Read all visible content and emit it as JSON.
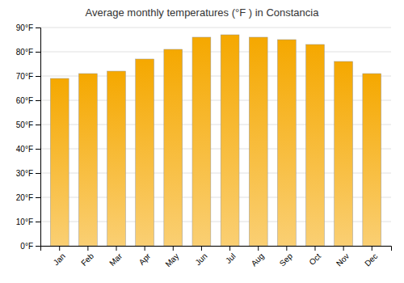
{
  "chart_data": {
    "type": "bar",
    "title": "Average monthly temperatures (°F ) in Constancia",
    "categories": [
      "Jan",
      "Feb",
      "Mar",
      "Apr",
      "May",
      "Jun",
      "Jul",
      "Aug",
      "Sep",
      "Oct",
      "Nov",
      "Dec"
    ],
    "values": [
      69,
      71,
      72,
      77,
      81,
      86,
      87,
      86,
      85,
      83,
      76,
      71
    ],
    "color": "#F5A800",
    "ylim": [
      0,
      90
    ],
    "yticks": [
      {
        "value": 0,
        "label": "0°F"
      },
      {
        "value": 10,
        "label": "10°F"
      },
      {
        "value": 20,
        "label": "20°F"
      },
      {
        "value": 30,
        "label": "30°F"
      },
      {
        "value": 40,
        "label": "40°F"
      },
      {
        "value": 50,
        "label": "50°F"
      },
      {
        "value": 60,
        "label": "60°F"
      },
      {
        "value": 70,
        "label": "70°F"
      },
      {
        "value": 80,
        "label": "80°F"
      },
      {
        "value": 90,
        "label": "90°F"
      }
    ],
    "grid": true
  }
}
